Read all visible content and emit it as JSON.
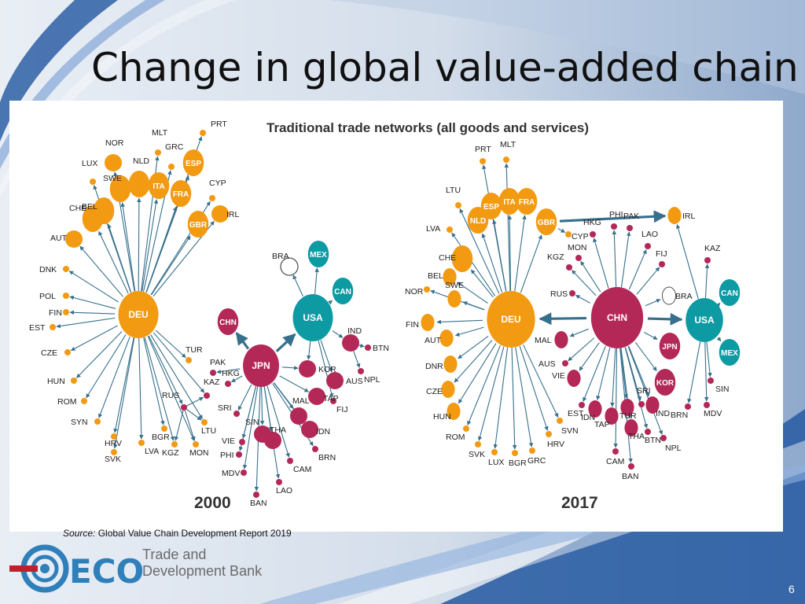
{
  "slide": {
    "title": "Change in global value-added chain",
    "source_label": "Source:",
    "source_text": " Global Value Chain Development Report 2019",
    "page_number": "6",
    "logo": {
      "mark": "ECO",
      "line1": "Trade and",
      "line2": "Development Bank"
    }
  },
  "colors": {
    "orange": "#f29a12",
    "crimson": "#b42857",
    "teal": "#0e9aa3",
    "edge": "#36708c"
  },
  "figure": {
    "title": "Traditional trade networks (all goods and services)",
    "networks": [
      {
        "year": "2000",
        "nodes": [
          {
            "id": "DEU",
            "hub": true,
            "c": "orange",
            "s": "L"
          },
          {
            "id": "LUX",
            "c": "orange",
            "s": "XS"
          },
          {
            "id": "NOR",
            "c": "orange",
            "s": "S"
          },
          {
            "id": "SWE",
            "c": "orange",
            "s": "M"
          },
          {
            "id": "NLD",
            "c": "orange",
            "s": "M"
          },
          {
            "id": "MLT",
            "c": "orange",
            "s": "XS"
          },
          {
            "id": "GRC",
            "c": "orange",
            "s": "XS"
          },
          {
            "id": "PRT",
            "c": "orange",
            "s": "XS"
          },
          {
            "id": "ITA",
            "c": "orange",
            "s": "M",
            "in": true
          },
          {
            "id": "ESP",
            "c": "orange",
            "s": "M",
            "in": true
          },
          {
            "id": "FRA",
            "c": "orange",
            "s": "M",
            "in": true
          },
          {
            "id": "GBR",
            "c": "orange",
            "s": "M",
            "in": true
          },
          {
            "id": "CYP",
            "c": "orange",
            "s": "XS"
          },
          {
            "id": "IRL",
            "c": "orange",
            "s": "S"
          },
          {
            "id": "BEL",
            "c": "orange",
            "s": "M"
          },
          {
            "id": "CHE",
            "c": "orange",
            "s": "M"
          },
          {
            "id": "AUT",
            "c": "orange",
            "s": "S"
          },
          {
            "id": "DNK",
            "c": "orange",
            "s": "XS"
          },
          {
            "id": "POL",
            "c": "orange",
            "s": "XS"
          },
          {
            "id": "FIN",
            "c": "orange",
            "s": "XS"
          },
          {
            "id": "EST",
            "c": "orange",
            "s": "XS"
          },
          {
            "id": "CZE",
            "c": "orange",
            "s": "XS"
          },
          {
            "id": "HUN",
            "c": "orange",
            "s": "XS"
          },
          {
            "id": "ROM",
            "c": "orange",
            "s": "XS"
          },
          {
            "id": "SYN",
            "c": "orange",
            "s": "XS"
          },
          {
            "id": "HRV",
            "c": "orange",
            "s": "XS"
          },
          {
            "id": "SVK",
            "c": "orange",
            "s": "XS"
          },
          {
            "id": "LVA",
            "c": "orange",
            "s": "XS"
          },
          {
            "id": "BGR",
            "c": "orange",
            "s": "XS"
          },
          {
            "id": "KGZ",
            "c": "orange",
            "s": "XS"
          },
          {
            "id": "MON",
            "c": "orange",
            "s": "XS"
          },
          {
            "id": "TUR",
            "c": "orange",
            "s": "XS"
          },
          {
            "id": "RUS",
            "c": "crimson",
            "s": "XS"
          },
          {
            "id": "LTU",
            "c": "orange",
            "s": "XS"
          },
          {
            "id": "KAZ",
            "c": "crimson",
            "s": "XS"
          },
          {
            "id": "CHN",
            "c": "crimson",
            "s": "M",
            "in": true
          },
          {
            "id": "PAK",
            "c": "crimson",
            "s": "XS"
          },
          {
            "id": "HKG",
            "c": "crimson",
            "s": "XS"
          },
          {
            "id": "JPN",
            "hub": true,
            "c": "crimson",
            "s": "L"
          },
          {
            "id": "SRI",
            "c": "crimson",
            "s": "XS"
          },
          {
            "id": "VIE",
            "c": "crimson",
            "s": "XS"
          },
          {
            "id": "PHI",
            "c": "crimson",
            "s": "XS"
          },
          {
            "id": "MDV",
            "c": "crimson",
            "s": "XS"
          },
          {
            "id": "SIN",
            "c": "crimson",
            "s": "S"
          },
          {
            "id": "THA",
            "c": "crimson",
            "s": "S"
          },
          {
            "id": "BAN",
            "c": "crimson",
            "s": "XS"
          },
          {
            "id": "LAO",
            "c": "crimson",
            "s": "XS"
          },
          {
            "id": "CAM",
            "c": "crimson",
            "s": "XS"
          },
          {
            "id": "MAL",
            "c": "crimson",
            "s": "S"
          },
          {
            "id": "IDN",
            "c": "crimson",
            "s": "S"
          },
          {
            "id": "BRN",
            "c": "crimson",
            "s": "XS"
          },
          {
            "id": "TAP",
            "c": "crimson",
            "s": "S"
          },
          {
            "id": "KOR",
            "c": "crimson",
            "s": "S"
          },
          {
            "id": "FIJ",
            "c": "crimson",
            "s": "XS"
          },
          {
            "id": "AUS",
            "c": "crimson",
            "s": "S"
          },
          {
            "id": "USA",
            "hub": true,
            "c": "teal",
            "s": "L"
          },
          {
            "id": "MEX",
            "c": "teal",
            "s": "M",
            "in": true
          },
          {
            "id": "CAN",
            "c": "teal",
            "s": "M",
            "in": true
          },
          {
            "id": "BRA",
            "c": "white",
            "s": "S"
          },
          {
            "id": "IND",
            "c": "crimson",
            "s": "S"
          },
          {
            "id": "BTN",
            "c": "crimson",
            "s": "XS"
          },
          {
            "id": "NPL",
            "c": "crimson",
            "s": "XS"
          }
        ],
        "links": [
          [
            "JPN",
            "USA"
          ],
          [
            "JPN",
            "CHN"
          ]
        ]
      },
      {
        "year": "2017",
        "nodes": [
          {
            "id": "DEU",
            "hub": true,
            "c": "orange",
            "s": "L"
          },
          {
            "id": "PRT",
            "c": "orange",
            "s": "XS"
          },
          {
            "id": "MLT",
            "c": "orange",
            "s": "XS"
          },
          {
            "id": "LTU",
            "c": "orange",
            "s": "XS"
          },
          {
            "id": "NLD",
            "c": "orange",
            "s": "M",
            "in": true
          },
          {
            "id": "ESP",
            "c": "orange",
            "s": "M",
            "in": true
          },
          {
            "id": "ITA",
            "c": "orange",
            "s": "M",
            "in": true
          },
          {
            "id": "FRA",
            "c": "orange",
            "s": "M",
            "in": true
          },
          {
            "id": "GBR",
            "c": "orange",
            "s": "M",
            "in": true
          },
          {
            "id": "LVA",
            "c": "orange",
            "s": "XS"
          },
          {
            "id": "CHE",
            "c": "orange",
            "s": "M"
          },
          {
            "id": "BEL",
            "c": "orange",
            "s": "S"
          },
          {
            "id": "NOR",
            "c": "orange",
            "s": "XS"
          },
          {
            "id": "SWE",
            "c": "orange",
            "s": "S"
          },
          {
            "id": "FIN",
            "c": "orange",
            "s": "S"
          },
          {
            "id": "AUT",
            "c": "orange",
            "s": "S"
          },
          {
            "id": "DNR",
            "c": "orange",
            "s": "S"
          },
          {
            "id": "CZE",
            "c": "orange",
            "s": "S"
          },
          {
            "id": "HUN",
            "c": "orange",
            "s": "S"
          },
          {
            "id": "ROM",
            "c": "orange",
            "s": "XS"
          },
          {
            "id": "SVK",
            "c": "orange",
            "s": "XS"
          },
          {
            "id": "LUX",
            "c": "orange",
            "s": "XS"
          },
          {
            "id": "BGR",
            "c": "orange",
            "s": "XS"
          },
          {
            "id": "GRC",
            "c": "orange",
            "s": "XS"
          },
          {
            "id": "HRV",
            "c": "orange",
            "s": "XS"
          },
          {
            "id": "SVN",
            "c": "orange",
            "s": "XS"
          },
          {
            "id": "CYP",
            "c": "orange",
            "s": "XS"
          },
          {
            "id": "IRL",
            "c": "orange",
            "s": "S"
          },
          {
            "id": "CHN",
            "hub": true,
            "c": "crimson",
            "s": "L"
          },
          {
            "id": "HKG",
            "c": "crimson",
            "s": "XS"
          },
          {
            "id": "PHI",
            "c": "crimson",
            "s": "XS"
          },
          {
            "id": "PAK",
            "c": "crimson",
            "s": "XS"
          },
          {
            "id": "LAO",
            "c": "crimson",
            "s": "XS"
          },
          {
            "id": "FIJ",
            "c": "crimson",
            "s": "XS"
          },
          {
            "id": "MON",
            "c": "crimson",
            "s": "XS"
          },
          {
            "id": "KGZ",
            "c": "crimson",
            "s": "XS"
          },
          {
            "id": "RUS",
            "c": "crimson",
            "s": "XS"
          },
          {
            "id": "MAL",
            "c": "crimson",
            "s": "S"
          },
          {
            "id": "AUS",
            "c": "crimson",
            "s": "XS"
          },
          {
            "id": "VIE",
            "c": "crimson",
            "s": "S"
          },
          {
            "id": "EST",
            "c": "crimson",
            "s": "XS"
          },
          {
            "id": "IDN",
            "c": "crimson",
            "s": "S"
          },
          {
            "id": "TAP",
            "c": "crimson",
            "s": "S"
          },
          {
            "id": "TUR",
            "c": "crimson",
            "s": "S"
          },
          {
            "id": "CAM",
            "c": "crimson",
            "s": "XS"
          },
          {
            "id": "THA",
            "c": "crimson",
            "s": "S"
          },
          {
            "id": "BAN",
            "c": "crimson",
            "s": "XS"
          },
          {
            "id": "BTN",
            "c": "crimson",
            "s": "XS"
          },
          {
            "id": "NPL",
            "c": "crimson",
            "s": "XS"
          },
          {
            "id": "SRI",
            "c": "crimson",
            "s": "XS"
          },
          {
            "id": "IND",
            "c": "crimson",
            "s": "S"
          },
          {
            "id": "KOR",
            "c": "crimson",
            "s": "M",
            "in": true
          },
          {
            "id": "JPN",
            "c": "crimson",
            "s": "M",
            "in": true
          },
          {
            "id": "BRA",
            "c": "white",
            "s": "S"
          },
          {
            "id": "USA",
            "hub": true,
            "c": "teal",
            "s": "L"
          },
          {
            "id": "KAZ",
            "c": "crimson",
            "s": "XS"
          },
          {
            "id": "CAN",
            "c": "teal",
            "s": "M",
            "in": true
          },
          {
            "id": "MEX",
            "c": "teal",
            "s": "M",
            "in": true
          },
          {
            "id": "SIN",
            "c": "crimson",
            "s": "XS"
          },
          {
            "id": "BRN",
            "c": "crimson",
            "s": "XS"
          },
          {
            "id": "MDV",
            "c": "crimson",
            "s": "XS"
          }
        ],
        "links": [
          [
            "CHN",
            "DEU"
          ],
          [
            "CHN",
            "USA"
          ],
          [
            "GBR",
            "IRL"
          ]
        ]
      }
    ]
  }
}
